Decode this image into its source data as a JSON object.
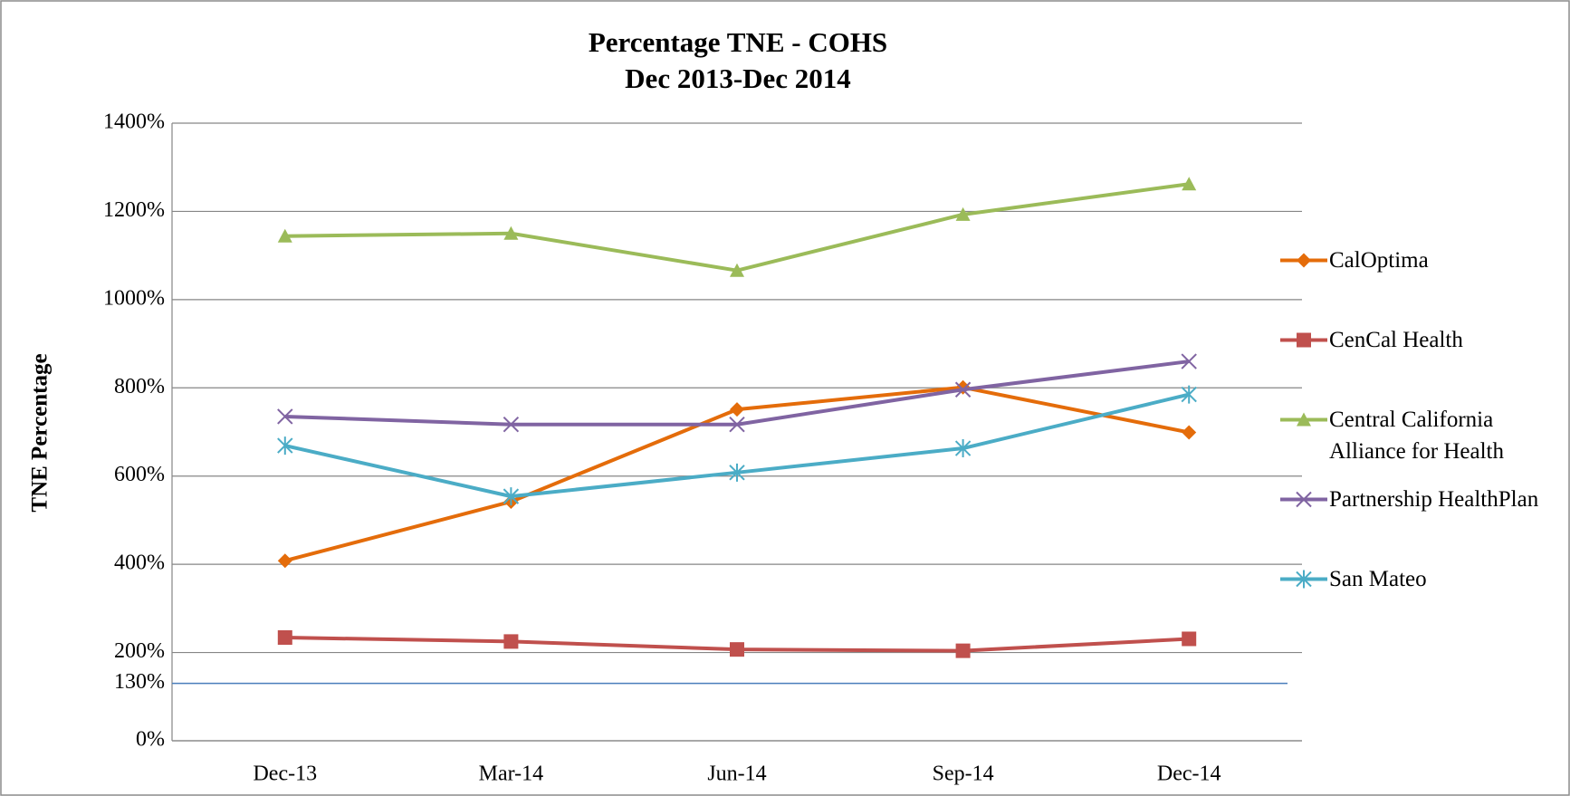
{
  "chart_data": {
    "type": "line",
    "title": "Percentage TNE - COHS",
    "subtitle": "Dec 2013-Dec 2014",
    "y_label": "TNE Percentage",
    "categories": [
      "Dec-13",
      "Mar-14",
      "Jun-14",
      "Sep-14",
      "Dec-14"
    ],
    "series": [
      {
        "name": "CalOptima",
        "color": "#e46c0a",
        "marker": "diamond",
        "values": [
          408,
          542,
          751,
          801,
          699
        ]
      },
      {
        "name": "CenCal Health",
        "color": "#c0504d",
        "marker": "square",
        "values": [
          234,
          225,
          207,
          204,
          231
        ]
      },
      {
        "name": "Central California Alliance for Health",
        "color": "#9bbb59",
        "marker": "triangle",
        "values": [
          1144,
          1150,
          1066,
          1193,
          1262
        ]
      },
      {
        "name": "Partnership HealthPlan",
        "color": "#8064a2",
        "marker": "x",
        "values": [
          735,
          717,
          717,
          796,
          860
        ]
      },
      {
        "name": "San Mateo",
        "color": "#4bacc6",
        "marker": "star",
        "values": [
          669,
          554,
          608,
          663,
          785
        ]
      }
    ],
    "reference_line": {
      "value": 130,
      "label": "130%",
      "color": "#4a7ebb"
    },
    "ylim": [
      0,
      1400
    ],
    "yticks": [
      {
        "value": 0,
        "label": "0%"
      },
      {
        "value": 200,
        "label": "200%"
      },
      {
        "value": 400,
        "label": "400%"
      },
      {
        "value": 600,
        "label": "600%"
      },
      {
        "value": 800,
        "label": "800%"
      },
      {
        "value": 1000,
        "label": "1000%"
      },
      {
        "value": 1200,
        "label": "1200%"
      },
      {
        "value": 1400,
        "label": "1400%"
      }
    ],
    "grid": true,
    "legend": "right"
  }
}
